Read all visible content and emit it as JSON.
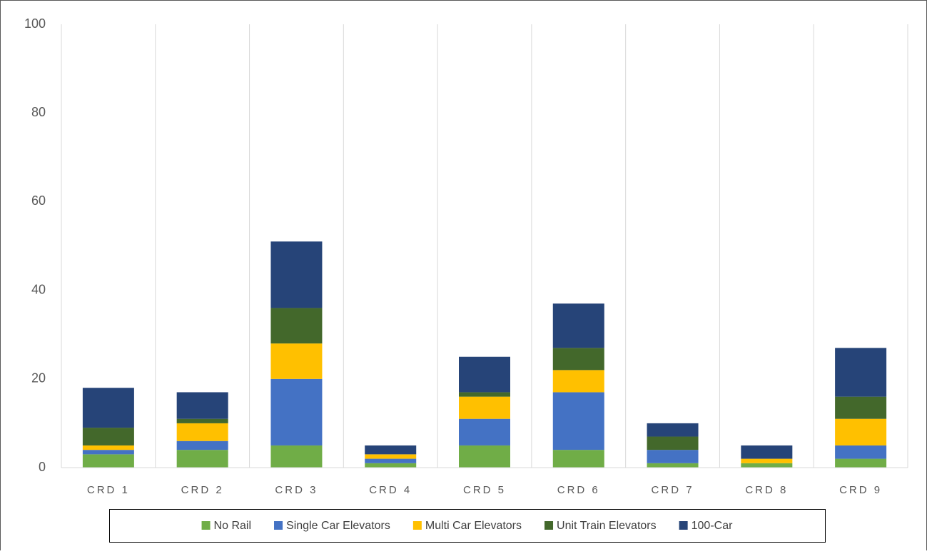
{
  "chart_data": {
    "type": "stacked_bar",
    "categories": [
      "CRD 1",
      "CRD 2",
      "CRD 3",
      "CRD 4",
      "CRD 5",
      "CRD 6",
      "CRD 7",
      "CRD 8",
      "CRD 9"
    ],
    "series": [
      {
        "name": "No Rail",
        "color": "#70ad47",
        "values": [
          3,
          4,
          5,
          1,
          5,
          4,
          1,
          1,
          2
        ]
      },
      {
        "name": "Single Car Elevators",
        "color": "#4472c4",
        "values": [
          1,
          2,
          15,
          1,
          6,
          13,
          3,
          0,
          3
        ]
      },
      {
        "name": "Multi Car Elevators",
        "color": "#ffc000",
        "values": [
          1,
          4,
          8,
          1,
          5,
          5,
          0,
          1,
          6
        ]
      },
      {
        "name": "Unit Train Elevators",
        "color": "#43682b",
        "values": [
          4,
          1,
          8,
          0,
          1,
          5,
          3,
          0,
          5
        ]
      },
      {
        "name": "100-Car",
        "color": "#264478",
        "values": [
          9,
          6,
          15,
          2,
          8,
          10,
          3,
          3,
          11
        ]
      }
    ],
    "ylim": [
      0,
      100
    ],
    "yticks": [
      0,
      20,
      40,
      60,
      80,
      100
    ],
    "legend": "bottom"
  }
}
